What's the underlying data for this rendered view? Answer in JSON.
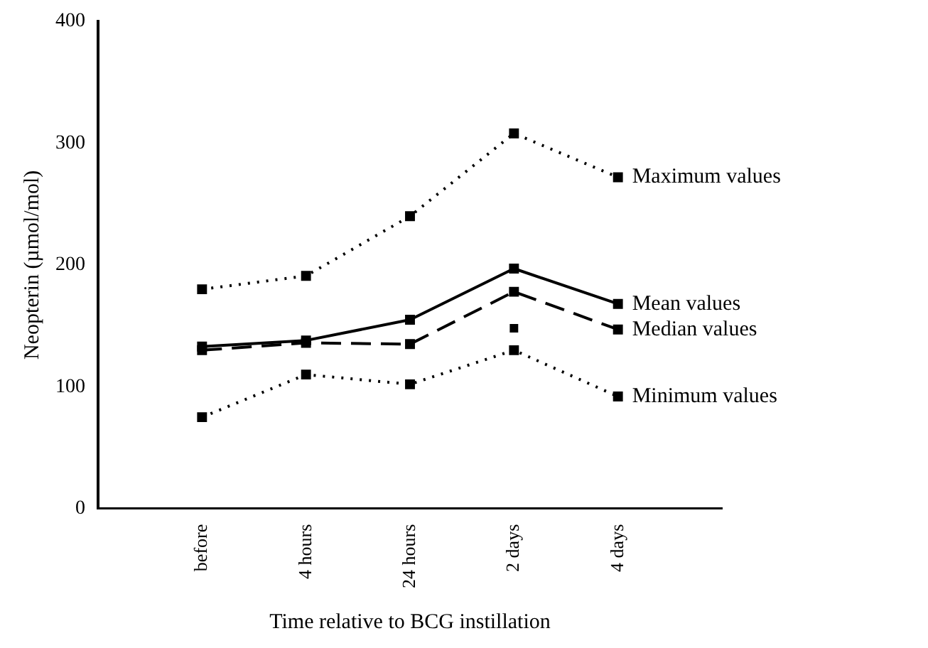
{
  "chart_data": {
    "type": "line",
    "xlabel": "Time relative to BCG instillation",
    "ylabel": "Neopterin (µmol/mol)",
    "categories": [
      "before",
      "4 hours",
      "24 hours",
      "2 days",
      "4 days"
    ],
    "ylim": [
      0,
      400
    ],
    "yticks": [
      0,
      100,
      200,
      300,
      400
    ],
    "grid": false,
    "legend": false,
    "marker": "square",
    "series": [
      {
        "name": "Maximum values",
        "color": "#000000",
        "line_style": "dotted",
        "values": [
          180,
          191,
          240,
          308,
          272
        ]
      },
      {
        "name": "Mean values",
        "color": "#000000",
        "line_style": "solid",
        "values": [
          133,
          138,
          155,
          197,
          168
        ]
      },
      {
        "name": "Median values",
        "color": "#000000",
        "line_style": "dashed",
        "values": [
          130,
          136,
          135,
          178,
          147
        ]
      },
      {
        "name": "Minimum values",
        "color": "#000000",
        "line_style": "dotted",
        "values": [
          75,
          110,
          102,
          130,
          92
        ]
      },
      {
        "type": "scatter",
        "color": "#000000",
        "x": [
          "2 days"
        ],
        "values": [
          148
        ]
      }
    ]
  }
}
